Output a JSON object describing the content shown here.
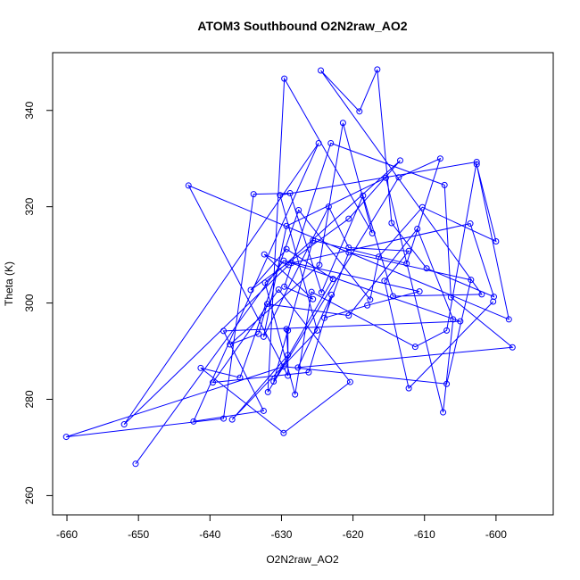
{
  "chart_data": {
    "type": "line",
    "title": "ATOM3 Southbound O2N2raw_AO2",
    "xlabel": "O2N2raw_AO2",
    "ylabel": "Theta (K)",
    "xlim": [
      -662,
      -592
    ],
    "ylim": [
      256,
      352
    ],
    "x_ticks": [
      -660,
      -650,
      -640,
      -630,
      -620,
      -610,
      -600
    ],
    "y_ticks": [
      260,
      280,
      300,
      320,
      340
    ],
    "grid": false,
    "legend": "none",
    "series_color": "#0000ff",
    "marker": "open-circle",
    "series": [
      {
        "x": [
          -600.4,
          -612.2,
          -615.6,
          -612.2,
          -620.6,
          -623.4,
          -632.5,
          -629.3,
          -615.4,
          -607.4,
          -606.0,
          -611.0,
          -620.6,
          -632.0,
          -633.2,
          -637.2,
          -624.7,
          -621.4,
          -617.3,
          -629.6,
          -631.9,
          -613.6,
          -607.8,
          -612.5,
          -625.6,
          -631.1,
          -622.8,
          -629.3,
          -634.3,
          -620.6,
          -613.4,
          -632.3,
          -628.1,
          -625.8,
          -611.3,
          -606.9,
          -602.7,
          -630.2,
          -625.0,
          -636.9,
          -629.1,
          -629.3,
          -629.1,
          -629.1,
          -643.0,
          -598.2,
          -602.7,
          -600.0,
          -610.3,
          -616.4,
          -617.6,
          -627.6,
          -635.8,
          -641.3,
          -629.7,
          -620.4,
          -630.4,
          -639.6,
          -626.2,
          -623.0,
          -627.7,
          -597.7,
          -606.3,
          -607.2,
          -623.1,
          -629.6,
          -625.6,
          -632.4,
          -629.0,
          -652.0,
          -624.8,
          -642.3,
          -632.5,
          -638.1,
          -605.0,
          -628.6,
          -603.6,
          -600.3,
          -609.7,
          -614.6,
          -616.6,
          -619.1,
          -624.5,
          -602.0,
          -614.4,
          -618.6,
          -624.4,
          -628.8,
          -633.9,
          -638.1,
          -660.1,
          -629.7,
          -606.9,
          -603.5,
          -620.6,
          -624.0,
          -618.0,
          -610.7,
          -629.7,
          -650.4
        ],
        "y": [
          300.3,
          282.3,
          304.6,
          310.8,
          311.5,
          320.0,
          293.0,
          316.0,
          326.0,
          277.3,
          296.6,
          315.4,
          297.4,
          299.8,
          293.6,
          291.4,
          307.9,
          337.4,
          314.5,
          346.6,
          281.5,
          326.1,
          330.0,
          308.2,
          313.0,
          283.7,
          305.0,
          311.2,
          302.7,
          317.5,
          329.6,
          304.2,
          281.0,
          302.3,
          290.9,
          294.3,
          329.3,
          322.4,
          294.3,
          275.8,
          289.2,
          294.6,
          294.3,
          284.9,
          324.4,
          296.6,
          328.8,
          312.8,
          319.9,
          309.6,
          300.7,
          319.3,
          284.5,
          286.5,
          273.0,
          283.6,
          302.8,
          283.5,
          285.6,
          301.7,
          286.6,
          290.8,
          301.2,
          324.5,
          333.2,
          303.4,
          300.8,
          310.1,
          307.9,
          274.8,
          333.2,
          275.4,
          277.6,
          294.2,
          296.2,
          308.3,
          316.5,
          301.3,
          307.2,
          316.6,
          348.5,
          339.8,
          348.3,
          301.8,
          301.4,
          322.3,
          302.2,
          322.8,
          322.6,
          276.0,
          272.2,
          286.8,
          283.2,
          304.8,
          310.5,
          296.9,
          299.5,
          302.4,
          308.8,
          266.6
        ]
      }
    ]
  }
}
